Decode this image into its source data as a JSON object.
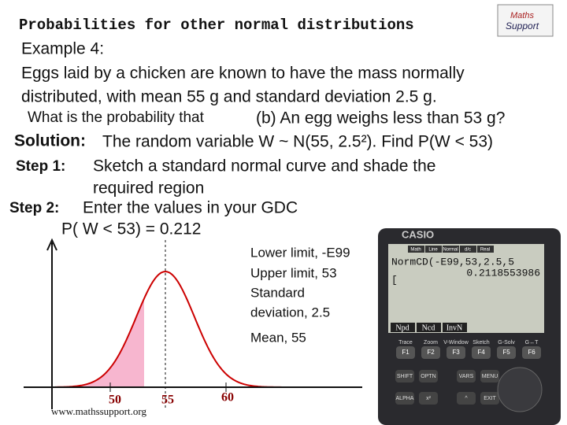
{
  "slide": {
    "title": "Probabilities for other normal distributions",
    "example": "Example 4:",
    "problem": [
      "Eggs laid by a chicken are known to have the mass normally",
      "distributed, with mean 55 g and standard deviation 2.5 g.",
      "What is the probability that"
    ],
    "question": "(b) An egg weighs less than 53 g?",
    "solution_label": "Solution:",
    "solution": "The random variable W ~ N(55, 2.5²). Find P(W < 53)",
    "step1_label": "Step 1:",
    "step1": [
      "Sketch a standard normal curve and shade the",
      "required region"
    ],
    "step2_label": "Step 2:",
    "step2": "Enter the values in your GDC",
    "result": "P( W < 53)  = 0.212",
    "notes": [
      "Lower limit, -E99",
      "Upper limit, 53",
      "Standard",
      "deviation, 2.5",
      "Mean, 55"
    ],
    "sketch_labels": [
      "50",
      "55",
      "60"
    ],
    "website": "www.mathssupport.org",
    "logo": [
      "Maths",
      "Support"
    ]
  },
  "calculator": {
    "brand": "CASIO",
    "menu_tabs": [
      "Math",
      "Line",
      "Normal",
      "d/c",
      "Real"
    ],
    "input": "NormCD(-E99,53,2.5,5",
    "output": "0.2118553986",
    "cursor": "[",
    "soft_keys": [
      "Npd",
      "Ncd",
      "InvN"
    ],
    "key_labels": [
      "Trace",
      "Zoom",
      "V-Window",
      "Sketch",
      "G-Solv",
      "G↔T"
    ],
    "f_keys": [
      "F1",
      "F2",
      "F3",
      "F4",
      "F5",
      "F6"
    ],
    "side_keys": [
      "SHIFT",
      "OPTN",
      "VARS",
      "MENU",
      "ALPHA",
      "x²",
      "^",
      "EXIT"
    ]
  }
}
